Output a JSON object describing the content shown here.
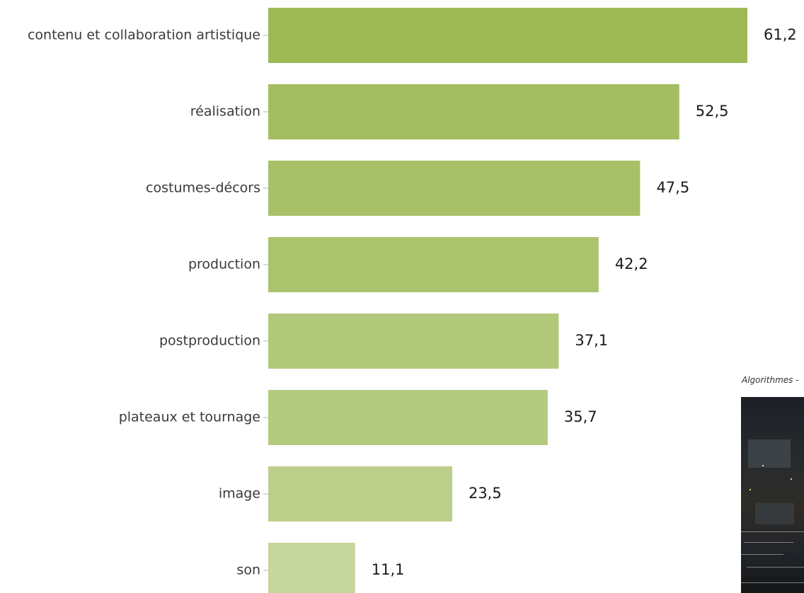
{
  "chart_data": {
    "type": "bar",
    "orientation": "horizontal",
    "categories": [
      "contenu et collaboration artistique",
      "réalisation",
      "costumes-décors",
      "production",
      "postproduction",
      "plateaux et tournage",
      "image",
      "son"
    ],
    "values": [
      61.2,
      52.5,
      47.5,
      42.2,
      37.1,
      35.7,
      23.5,
      11.1
    ],
    "value_labels": [
      "61,2",
      "52,5",
      "47,5",
      "42,2",
      "37,1",
      "35,7",
      "23,5",
      "11,1"
    ],
    "bar_colors": [
      "#9db955",
      "#a3bd60",
      "#a8c169",
      "#aac36d",
      "#b1c87a",
      "#b4ca7f",
      "#bccf8a",
      "#c6d69c"
    ],
    "title": "",
    "xlabel": "",
    "ylabel": "",
    "xlim": [
      0,
      61.2
    ],
    "grid": false,
    "legend": "none"
  },
  "inset": {
    "caption": "Algorithmes -"
  }
}
